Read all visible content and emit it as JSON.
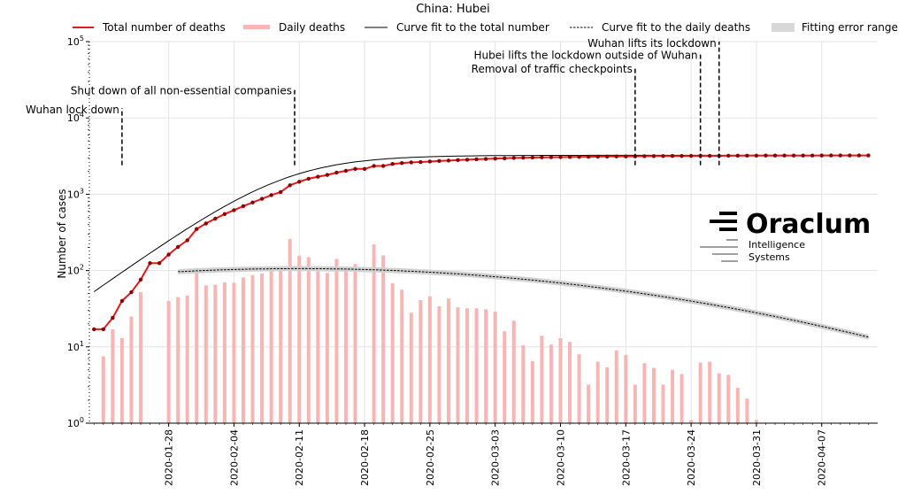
{
  "chart_data": {
    "type": "line",
    "title": "China: Hubei",
    "xlabel": "",
    "ylabel": "Number of cases",
    "yscale": "log",
    "ylim": [
      1,
      100000
    ],
    "grid": true,
    "legend_position": "top",
    "x_tick_labels": [
      "2020-01-28",
      "2020-02-04",
      "2020-02-11",
      "2020-02-18",
      "2020-02-25",
      "2020-03-03",
      "2020-03-10",
      "2020-03-17",
      "2020-03-24",
      "2020-03-31",
      "2020-04-07"
    ],
    "y_tick_labels": [
      {
        "base": "10",
        "exp": "0"
      },
      {
        "base": "10",
        "exp": "1"
      },
      {
        "base": "10",
        "exp": "2"
      },
      {
        "base": "10",
        "exp": "3"
      },
      {
        "base": "10",
        "exp": "4"
      },
      {
        "base": "10",
        "exp": "5"
      }
    ],
    "legend": [
      {
        "label": "Total number of deaths",
        "style": "red-line"
      },
      {
        "label": "Daily deaths",
        "style": "pink-bar"
      },
      {
        "label": "Curve fit to the total number",
        "style": "black-line"
      },
      {
        "label": "Curve fit to the daily deaths",
        "style": "dashed-line"
      },
      {
        "label": "Fitting error range",
        "style": "grey-band"
      }
    ],
    "day0_date": "2020-01-20",
    "series": [
      {
        "name": "Total number of deaths",
        "color": "#e31a1c",
        "x": [
          0,
          1,
          2,
          3,
          4,
          5,
          6,
          7,
          8,
          9,
          10,
          11,
          12,
          13,
          14,
          15,
          16,
          17,
          18,
          19,
          20,
          21,
          22,
          23,
          24,
          25,
          26,
          27,
          28,
          29,
          30,
          31,
          32,
          33,
          34,
          35,
          36,
          37,
          38,
          39,
          40,
          41,
          42,
          43,
          44,
          45,
          46,
          47,
          48,
          49,
          50,
          51,
          52,
          53,
          54,
          55,
          56,
          57,
          58,
          59,
          60,
          61,
          62,
          63,
          64,
          65,
          66,
          67,
          68,
          69,
          70,
          71,
          72,
          73,
          74,
          75,
          76,
          77,
          78,
          79,
          80,
          81,
          82,
          83
        ],
        "values": [
          17,
          17,
          24,
          40,
          52,
          76,
          125,
          125,
          162,
          204,
          249,
          350,
          414,
          479,
          549,
          618,
          699,
          780,
          871,
          974,
          1068,
          1310,
          1457,
          1596,
          1696,
          1789,
          1921,
          2029,
          2144,
          2144,
          2346,
          2346,
          2495,
          2563,
          2615,
          2641,
          2682,
          2727,
          2761,
          2803,
          2835,
          2871,
          2902,
          2931,
          2959,
          2986,
          3008,
          3024,
          3046,
          3056,
          3062,
          3075,
          3085,
          3099,
          3111,
          3122,
          3130,
          3133,
          3139,
          3153,
          3160,
          3163,
          3169,
          3174,
          3177,
          3182,
          3186,
          3187,
          3193,
          3199,
          3203,
          3207,
          3210,
          3212,
          3212,
          3213,
          3215,
          3216,
          3219,
          3221,
          3222,
          3222,
          3222,
          3222
        ]
      },
      {
        "name": "Daily deaths",
        "color": "#f7b6b4",
        "x": [
          0,
          1,
          2,
          3,
          4,
          5,
          6,
          7,
          8,
          9,
          10,
          11,
          12,
          13,
          14,
          15,
          16,
          17,
          18,
          19,
          20,
          21,
          22,
          23,
          24,
          25,
          26,
          27,
          28,
          29,
          30,
          31,
          32,
          33,
          34,
          35,
          36,
          37,
          38,
          39,
          40,
          41,
          42,
          43,
          44,
          45,
          46,
          47,
          48,
          49,
          50,
          51,
          52,
          53,
          54,
          55,
          56,
          57,
          58,
          59,
          60,
          61,
          62,
          63,
          64,
          65,
          66,
          67,
          68,
          69,
          70,
          71,
          72,
          73,
          74,
          75,
          76,
          77,
          78,
          79,
          80,
          81,
          82,
          83
        ],
        "values": [
          0,
          7.5,
          17,
          13,
          25,
          52,
          0,
          0,
          40,
          45,
          47,
          108,
          64,
          65,
          70,
          69,
          81,
          87,
          91,
          103,
          108,
          260,
          157,
          150,
          106,
          93,
          142,
          112,
          122,
          0,
          220,
          158,
          68,
          56,
          28,
          41,
          46,
          34,
          43,
          33,
          32,
          32,
          31,
          29,
          16,
          22,
          10.5,
          6.5,
          14,
          10.7,
          13,
          11.6,
          8,
          3.2,
          6.4,
          5.4,
          9,
          7.8,
          3.2,
          6.1,
          5.3,
          3.2,
          5,
          4.4,
          1.1,
          6.2,
          6.4,
          4.5,
          4.3,
          2.9,
          2.1,
          1.1,
          0,
          0,
          0,
          0,
          0,
          0,
          0,
          0,
          0,
          0,
          0,
          0
        ]
      },
      {
        "name": "Curve fit to the total number",
        "color": "#000000",
        "model": "logistic",
        "params": {
          "K": 3240,
          "r": 0.2,
          "t0": 20.5
        }
      },
      {
        "name": "Curve fit to the daily deaths",
        "color": "#000000",
        "model": "lognormal-peak",
        "params": {
          "peak": 106,
          "t_peak": 22,
          "width": 30,
          "x_start": 9,
          "x_end": 83
        }
      }
    ],
    "annotations": [
      {
        "label": "Wuhan lock down",
        "x": 3,
        "y_bottom": 2400,
        "y_top": 13500,
        "label_align": "right"
      },
      {
        "label": "Shut down of all non-essential companies",
        "x": 21.5,
        "y_bottom": 2400,
        "y_top": 24000,
        "label_align": "right"
      },
      {
        "label": "Removal of traffic checkpoints",
        "x": 58,
        "y_bottom": 2400,
        "y_top": 46000,
        "label_align": "right"
      },
      {
        "label": "Hubei lifts the lockdown outside of Wuhan",
        "x": 65,
        "y_bottom": 2400,
        "y_top": 70000,
        "label_align": "right"
      },
      {
        "label": "Wuhan lifts its lockdown",
        "x": 67,
        "y_bottom": 2400,
        "y_top": 100000,
        "label_align": "right"
      }
    ]
  },
  "logo": {
    "name": "Oraclum",
    "subtitle_line1": "Intelligence",
    "subtitle_line2": "Systems"
  }
}
